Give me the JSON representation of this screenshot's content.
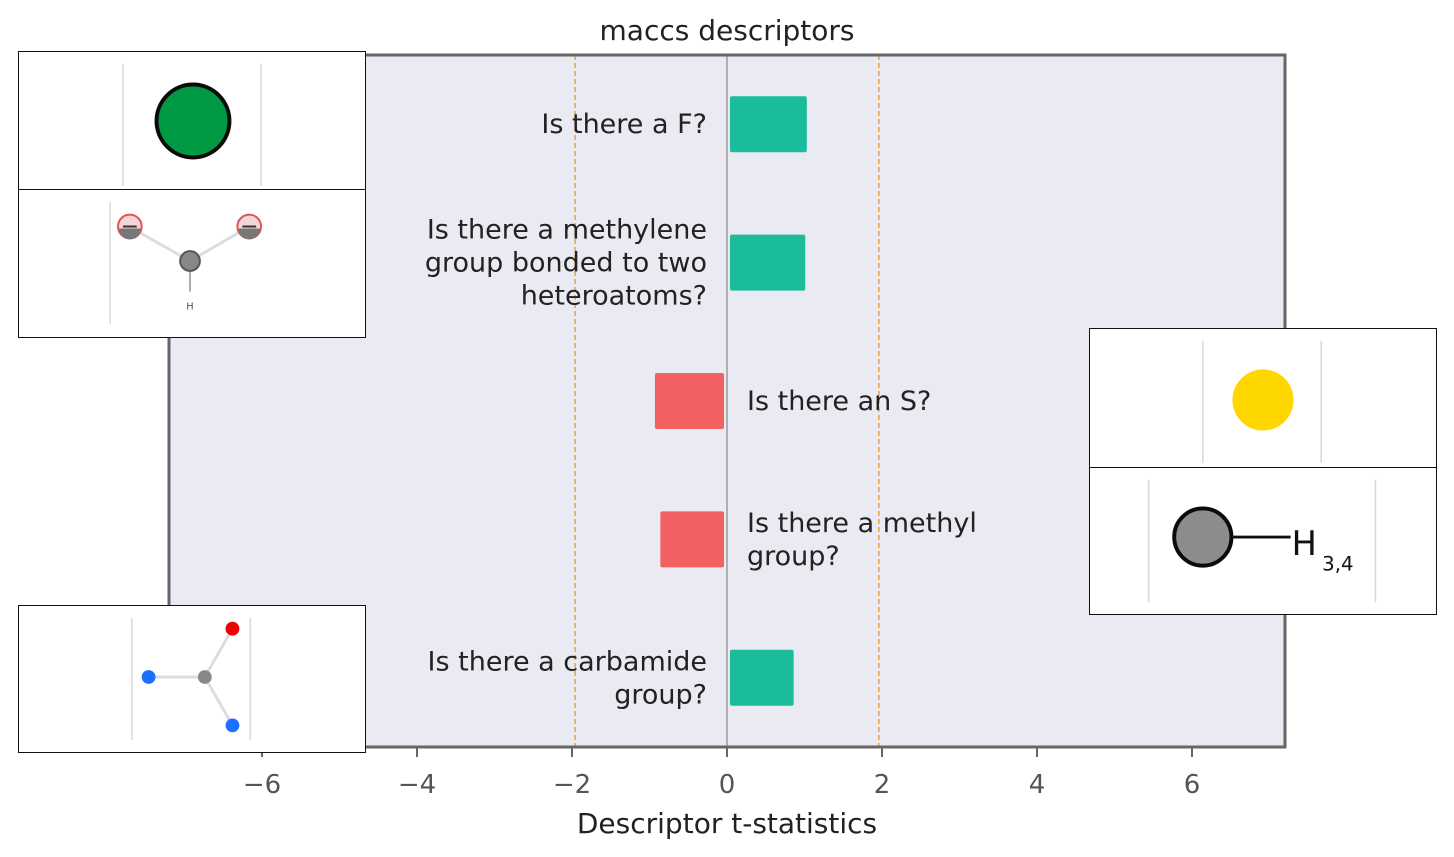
{
  "chart_data": {
    "type": "bar",
    "orientation": "horizontal",
    "title": "maccs descriptors",
    "xlabel": "Descriptor t-statistics",
    "ylabel": "",
    "xlim": [
      -7.2,
      7.2
    ],
    "xticks": [
      -6,
      -4,
      -2,
      0,
      2,
      4,
      6
    ],
    "xtick_labels": [
      "−6",
      "−4",
      "−2",
      "0",
      "2",
      "4",
      "6"
    ],
    "significance_lines": [
      -1.96,
      1.96
    ],
    "grid": false,
    "categories": [
      "Is there a F?",
      "Is there a methylene group bonded to two heteroatoms?",
      "Is there an S?",
      "Is there a methyl group?",
      "Is there a carbamide group?"
    ],
    "category_lines": [
      [
        "Is there a F?"
      ],
      [
        "Is there a methylene",
        "group bonded to two",
        "heteroatoms?"
      ],
      [
        "Is there an S?"
      ],
      [
        "Is there a methyl",
        "group?"
      ],
      [
        "Is there a carbamide",
        "group?"
      ]
    ],
    "values": [
      1.03,
      1.01,
      -0.93,
      -0.86,
      0.86
    ],
    "colors": {
      "positive": "#1abc9c",
      "negative": "#f16161",
      "background": "#eaeaf2",
      "significance": "#f0a035",
      "zero_line": "#888888",
      "frame": "#666666"
    }
  },
  "insets": [
    {
      "icon": "fluorine-atom-icon"
    },
    {
      "icon": "methylene-heteroatom-fragment-icon",
      "label": "H"
    },
    {
      "icon": "sulfur-atom-icon"
    },
    {
      "icon": "methyl-group-icon",
      "label_main": "H",
      "label_sub": "3,4"
    },
    {
      "icon": "carbamide-fragment-icon"
    }
  ]
}
